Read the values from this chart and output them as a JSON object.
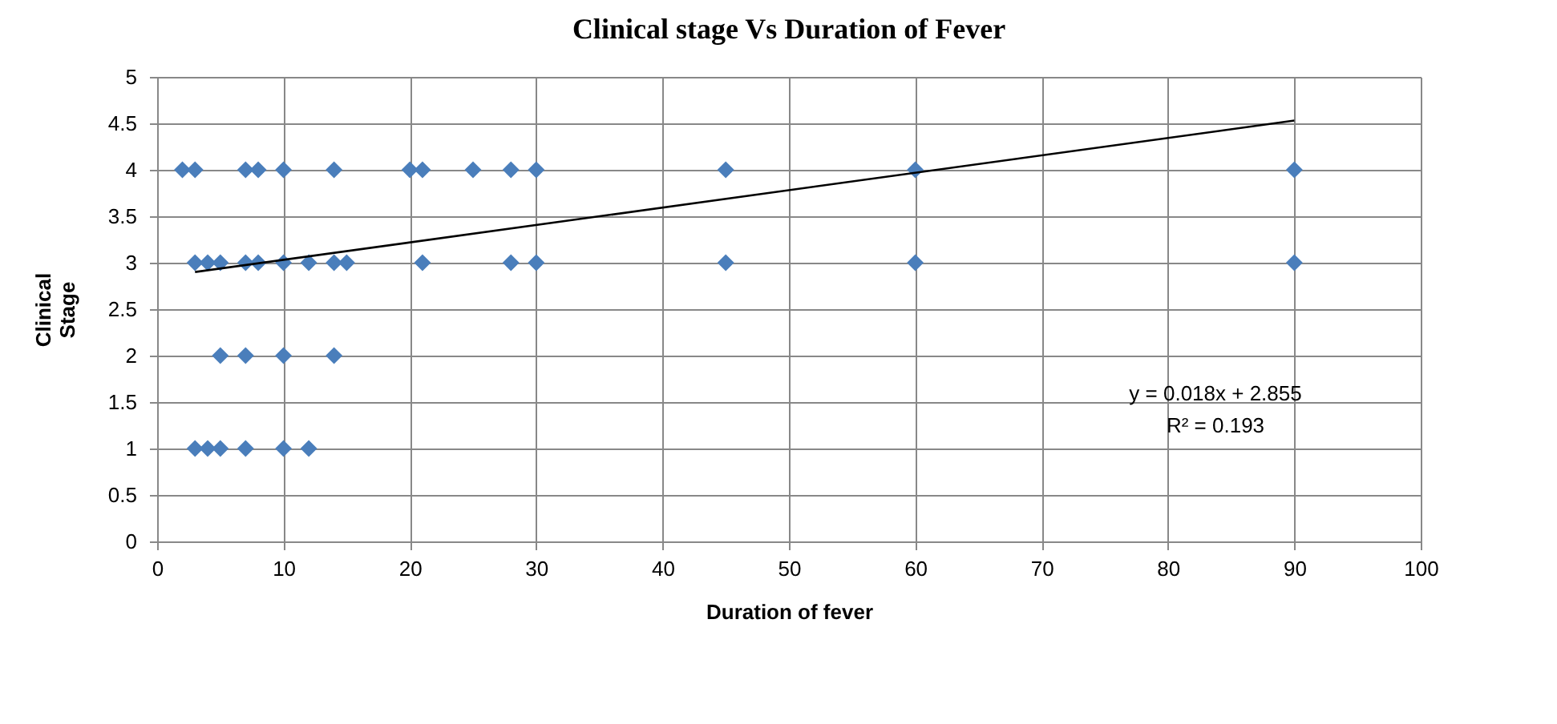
{
  "chart_data": {
    "type": "scatter",
    "title": "Clinical stage Vs Duration of Fever",
    "xlabel": "Duration of fever",
    "ylabel": "Clinical Stage",
    "grid": true,
    "xlim": [
      0,
      100
    ],
    "xticks": [
      0,
      10,
      20,
      30,
      40,
      50,
      60,
      70,
      80,
      90,
      100
    ],
    "ylim": [
      0,
      5
    ],
    "yticks": [
      0,
      0.5,
      1,
      1.5,
      2,
      2.5,
      3,
      3.5,
      4,
      4.5,
      5
    ],
    "annotations": [
      "y = 0.018x + 2.855",
      "R² = 0.193"
    ],
    "series": [
      {
        "color": "#4a7ebb",
        "marker": "diamond",
        "x": [
          2,
          3,
          7,
          8,
          10,
          14,
          20,
          21,
          25,
          28,
          30,
          45,
          60,
          90,
          3,
          4,
          5,
          7,
          8,
          10,
          12,
          14,
          15,
          21,
          28,
          30,
          45,
          60,
          90,
          5,
          7,
          10,
          14,
          3,
          4,
          5,
          7,
          10,
          12
        ],
        "values": [
          4,
          4,
          4,
          4,
          4,
          4,
          4,
          4,
          4,
          4,
          4,
          4,
          4,
          4,
          3,
          3,
          3,
          3,
          3,
          3,
          3,
          3,
          3,
          3,
          3,
          3,
          3,
          3,
          3,
          2,
          2,
          2,
          2,
          1,
          1,
          1,
          1,
          1,
          1
        ]
      },
      {
        "type": "line",
        "marker": "none",
        "color": "#000000",
        "x": [
          3,
          90
        ],
        "values": [
          2.9,
          4.53
        ]
      }
    ]
  }
}
